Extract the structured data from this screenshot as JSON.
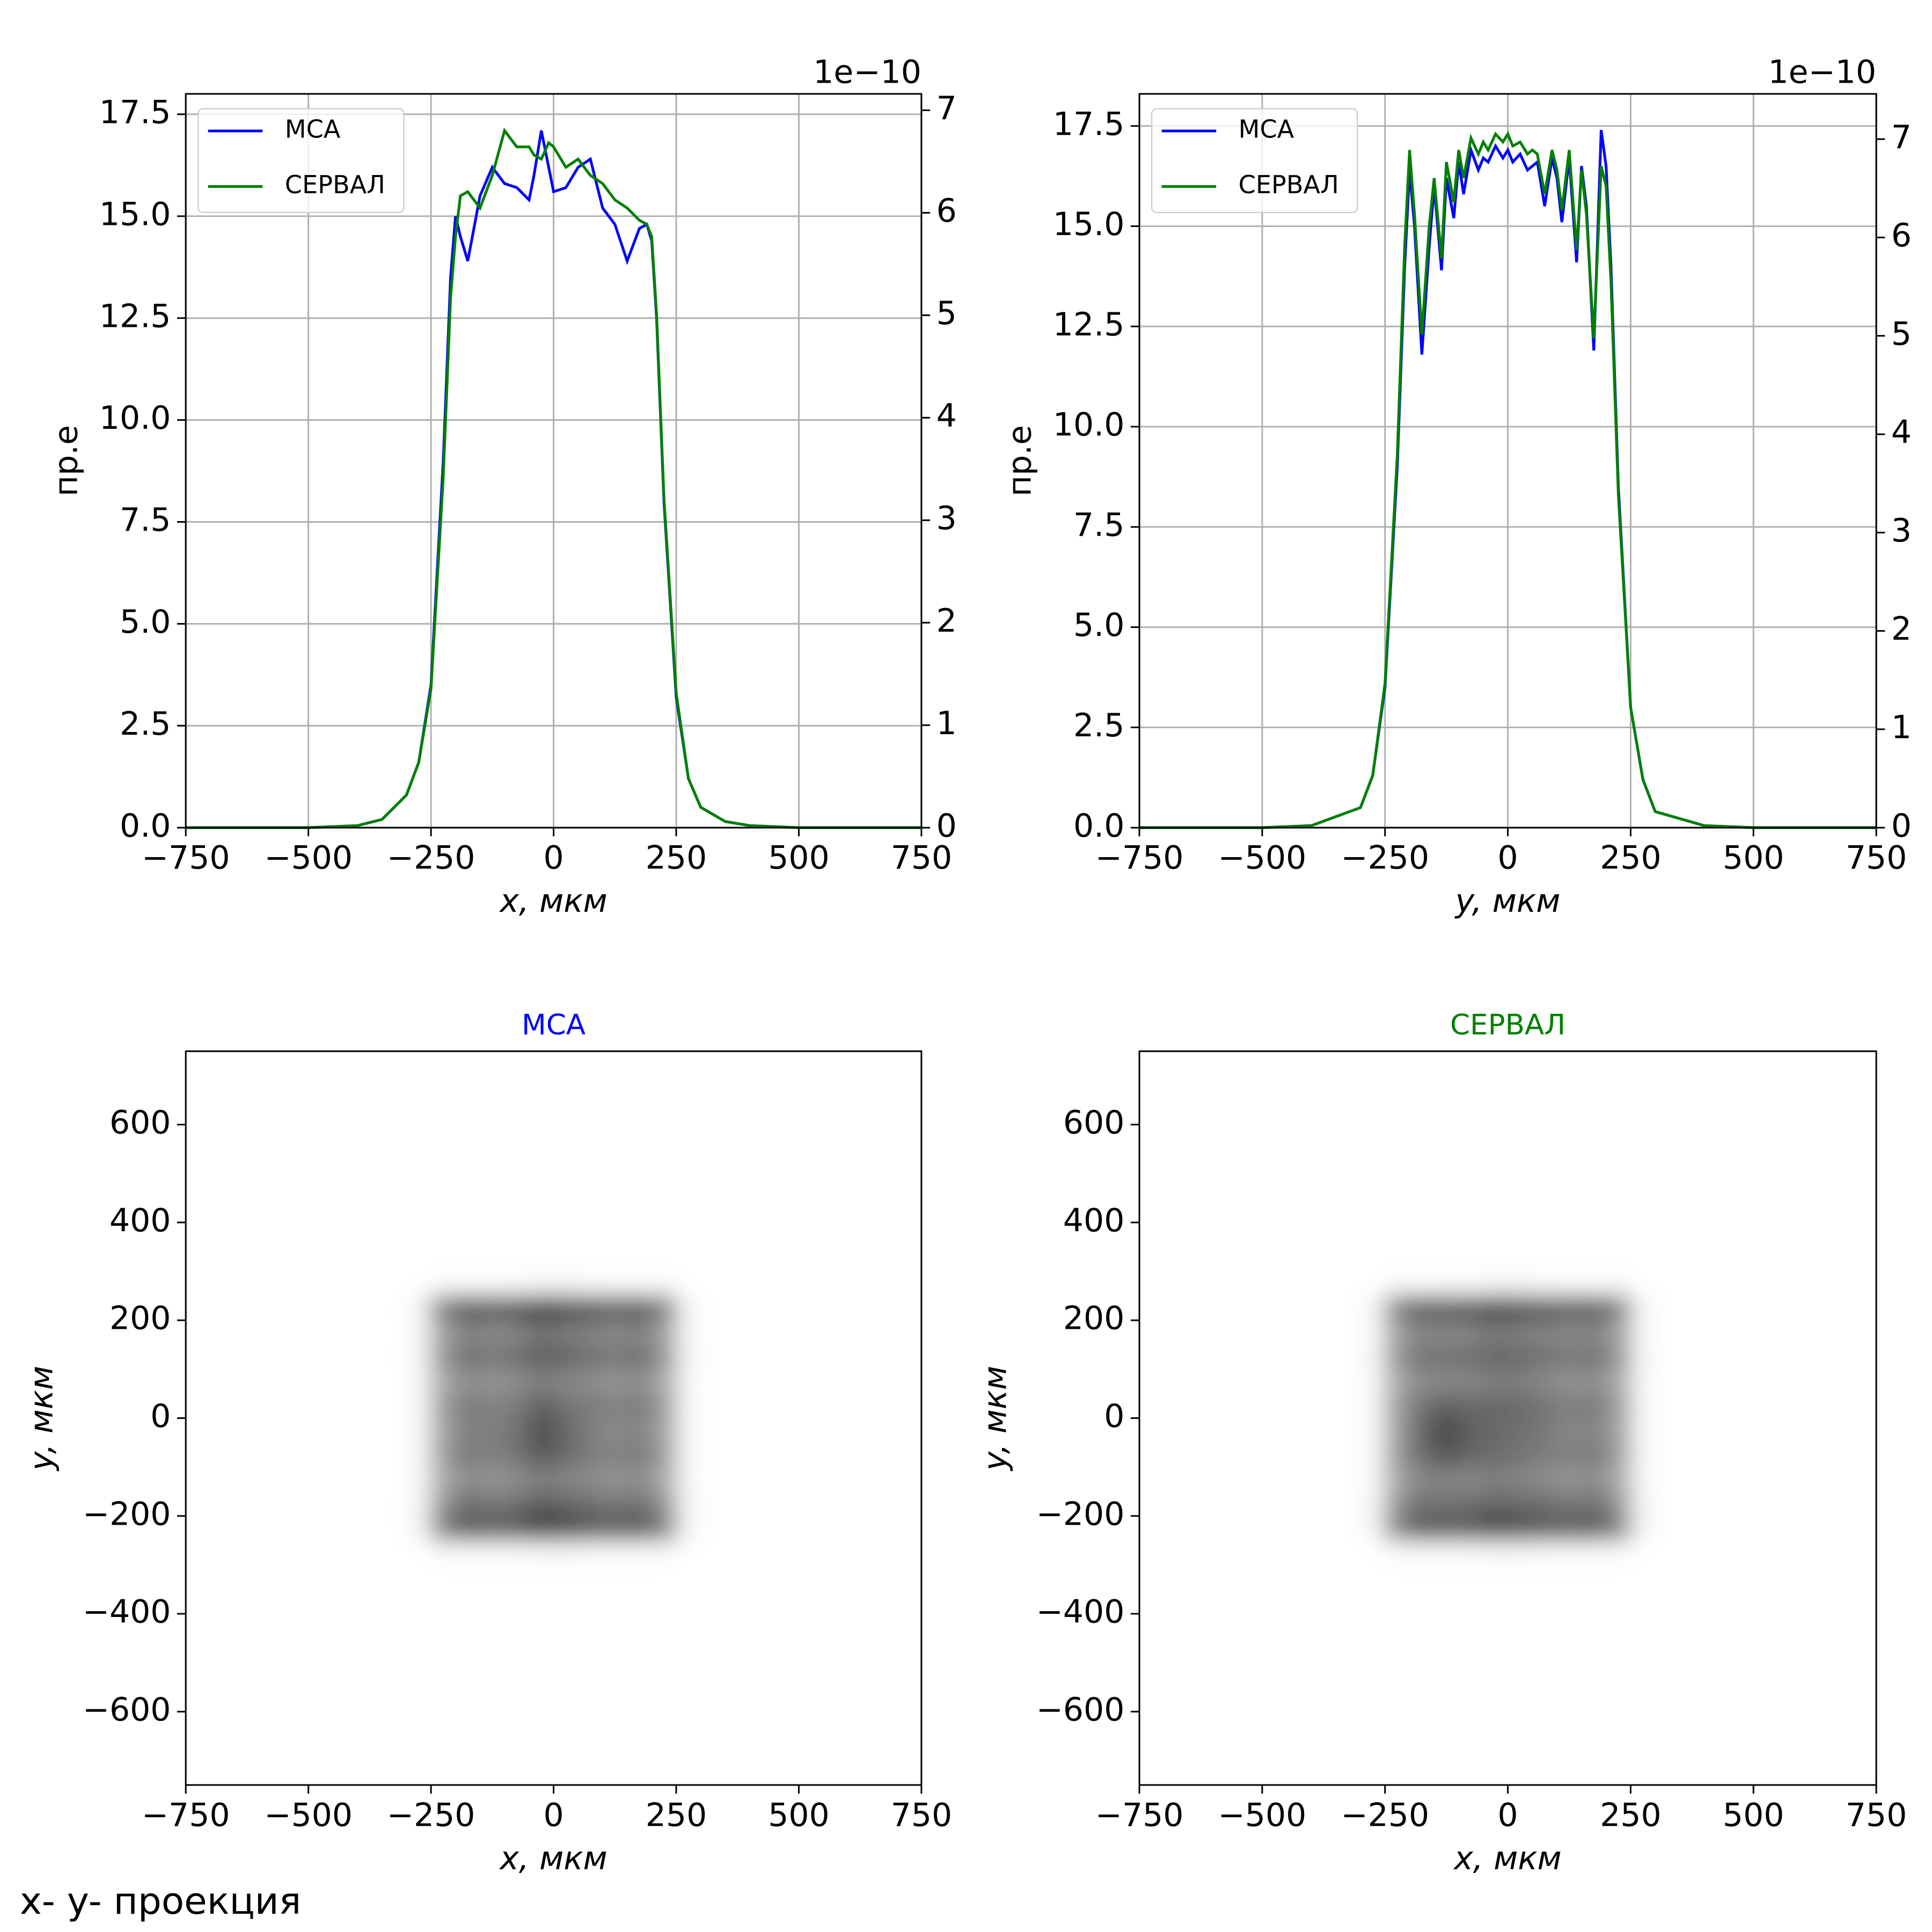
{
  "chart_data": [
    {
      "type": "line",
      "ylabel": "пр.е",
      "xlabel": "x, мкм",
      "y2_offset_label": "1e−10",
      "x": [
        -750,
        -500,
        -400,
        -350,
        -300,
        -275,
        -250,
        -225,
        -210,
        -200,
        -190,
        -175,
        -150,
        -125,
        -100,
        -75,
        -50,
        -40,
        -25,
        -10,
        0,
        25,
        50,
        75,
        100,
        125,
        150,
        175,
        190,
        200,
        210,
        225,
        250,
        275,
        300,
        350,
        400,
        500,
        750
      ],
      "series": [
        {
          "name": "МСА",
          "color": "#0000ff",
          "values": [
            0,
            0,
            0.05,
            0.2,
            0.8,
            1.6,
            3.5,
            9,
            13.5,
            15,
            14.5,
            13.9,
            15.5,
            16.2,
            15.8,
            15.7,
            15.4,
            16,
            17.1,
            16.2,
            15.6,
            15.7,
            16.2,
            16.4,
            15.2,
            14.8,
            13.9,
            14.7,
            14.8,
            14.4,
            12.5,
            8,
            3.2,
            1.2,
            0.5,
            0.15,
            0.05,
            0,
            0
          ]
        },
        {
          "name": "СЕРВАЛ",
          "color": "#008000",
          "values": [
            0,
            0,
            0.05,
            0.2,
            0.8,
            1.6,
            3.4,
            8.6,
            13,
            14.5,
            15.5,
            15.6,
            15.2,
            16,
            17.1,
            16.7,
            16.7,
            16.5,
            16.4,
            16.8,
            16.7,
            16.2,
            16.4,
            16,
            15.8,
            15.4,
            15.2,
            14.9,
            14.8,
            14.5,
            12.6,
            8.1,
            3.3,
            1.2,
            0.5,
            0.15,
            0.05,
            0,
            0
          ]
        }
      ],
      "xlim": [
        -750,
        750
      ],
      "xticks": [
        {
          "value": -750,
          "label": "−750"
        },
        {
          "value": -500,
          "label": "−500"
        },
        {
          "value": -250,
          "label": "−250"
        },
        0,
        250,
        500,
        750
      ],
      "ylim": [
        0,
        18
      ],
      "yticks": [
        {
          "value": 0,
          "label": "0.0"
        },
        2.5,
        {
          "value": 5,
          "label": "5.0"
        },
        7.5,
        {
          "value": 10,
          "label": "10.0"
        },
        12.5,
        {
          "value": 15,
          "label": "15.0"
        },
        17.5
      ],
      "y2lim": [
        0,
        7.16
      ],
      "y2ticks": [
        0,
        1,
        2,
        3,
        4,
        5,
        6,
        7
      ],
      "grid": true,
      "legend": "upper left"
    },
    {
      "type": "line",
      "ylabel": "пр.е",
      "xlabel": "y, мкм",
      "y2_offset_label": "1e−10",
      "x": [
        -750,
        -500,
        -400,
        -300,
        -275,
        -250,
        -225,
        -210,
        -200,
        -190,
        -175,
        -160,
        -150,
        -135,
        -125,
        -110,
        -100,
        -90,
        -75,
        -60,
        -50,
        -40,
        -25,
        -10,
        0,
        10,
        25,
        40,
        50,
        60,
        75,
        90,
        100,
        110,
        125,
        140,
        150,
        160,
        175,
        190,
        200,
        210,
        225,
        250,
        275,
        300,
        400,
        500,
        750
      ],
      "series": [
        {
          "name": "МСА",
          "color": "#0000ff",
          "values": [
            0,
            0,
            0.05,
            0.5,
            1.3,
            3.5,
            9,
            14,
            16.4,
            15,
            11.8,
            14.5,
            16,
            13.9,
            16.2,
            15.2,
            16.6,
            15.8,
            16.9,
            16.4,
            16.7,
            16.6,
            17,
            16.7,
            16.9,
            16.6,
            16.8,
            16.4,
            16.5,
            16.6,
            15.5,
            16.7,
            16.2,
            15.1,
            16.7,
            14.1,
            16.5,
            15.5,
            11.9,
            17.4,
            16.5,
            14,
            8.5,
            3,
            1.2,
            0.4,
            0.05,
            0,
            0
          ]
        },
        {
          "name": "СЕРВАЛ",
          "color": "#008000",
          "values": [
            0,
            0,
            0.05,
            0.5,
            1.3,
            3.6,
            9.3,
            14.5,
            16.9,
            15.3,
            12.3,
            15,
            16.2,
            14.2,
            16.6,
            15.6,
            16.9,
            16.2,
            17.2,
            16.8,
            17.1,
            16.9,
            17.3,
            17.1,
            17.3,
            17,
            17.1,
            16.8,
            16.9,
            16.8,
            15.8,
            16.9,
            16.4,
            15.4,
            16.9,
            14.4,
            16.4,
            15.3,
            12.2,
            16.5,
            16,
            13.6,
            8.3,
            3,
            1.2,
            0.4,
            0.05,
            0,
            0
          ]
        }
      ],
      "xlim": [
        -750,
        750
      ],
      "xticks": [
        {
          "value": -750,
          "label": "−750"
        },
        {
          "value": -500,
          "label": "−500"
        },
        {
          "value": -250,
          "label": "−250"
        },
        0,
        250,
        500,
        750
      ],
      "ylim": [
        0,
        18.3
      ],
      "yticks": [
        {
          "value": 0,
          "label": "0.0"
        },
        2.5,
        {
          "value": 5,
          "label": "5.0"
        },
        7.5,
        {
          "value": 10,
          "label": "10.0"
        },
        12.5,
        {
          "value": 15,
          "label": "15.0"
        },
        17.5
      ],
      "y2lim": [
        0,
        7.46
      ],
      "y2ticks": [
        0,
        1,
        2,
        3,
        4,
        5,
        6,
        7
      ],
      "grid": true,
      "legend": "upper left"
    },
    {
      "type": "heatmap",
      "title": "МСА",
      "title_color": "#0000ff",
      "xlabel": "x, мкм",
      "ylabel": "y, мкм",
      "colormap": "gray_r",
      "x": [
        -275,
        -225,
        -175,
        -125,
        -75,
        -25,
        25,
        75,
        125,
        175,
        225,
        275
      ],
      "y": [
        275,
        225,
        175,
        125,
        75,
        25,
        -25,
        -75,
        -125,
        -175,
        -225,
        -275
      ],
      "z": [
        [
          0,
          0.02,
          0.02,
          0.02,
          0.02,
          0.03,
          0.03,
          0.02,
          0.02,
          0.02,
          0.02,
          0
        ],
        [
          0.04,
          0.51,
          0.68,
          0.64,
          0.68,
          0.77,
          0.72,
          0.68,
          0.64,
          0.68,
          0.51,
          0.04
        ],
        [
          0.03,
          0.36,
          0.48,
          0.45,
          0.48,
          0.54,
          0.51,
          0.48,
          0.45,
          0.48,
          0.36,
          0.03
        ],
        [
          0.04,
          0.42,
          0.56,
          0.53,
          0.56,
          0.63,
          0.6,
          0.56,
          0.53,
          0.56,
          0.42,
          0.04
        ],
        [
          0.03,
          0.33,
          0.44,
          0.41,
          0.44,
          0.5,
          0.47,
          0.44,
          0.41,
          0.44,
          0.33,
          0.03
        ],
        [
          0.03,
          0.39,
          0.52,
          0.49,
          0.52,
          0.62,
          0.55,
          0.52,
          0.49,
          0.52,
          0.39,
          0.03
        ],
        [
          0.03,
          0.36,
          0.5,
          0.5,
          0.55,
          0.7,
          0.6,
          0.5,
          0.45,
          0.48,
          0.36,
          0.03
        ],
        [
          0.03,
          0.39,
          0.52,
          0.5,
          0.55,
          0.65,
          0.58,
          0.52,
          0.49,
          0.52,
          0.39,
          0.03
        ],
        [
          0.03,
          0.33,
          0.44,
          0.41,
          0.44,
          0.5,
          0.47,
          0.44,
          0.41,
          0.44,
          0.33,
          0.03
        ],
        [
          0.04,
          0.42,
          0.56,
          0.53,
          0.56,
          0.63,
          0.6,
          0.56,
          0.53,
          0.56,
          0.42,
          0.04
        ],
        [
          0.04,
          0.51,
          0.68,
          0.64,
          0.68,
          0.77,
          0.72,
          0.68,
          0.64,
          0.68,
          0.51,
          0.04
        ],
        [
          0,
          0.02,
          0.02,
          0.02,
          0.02,
          0.03,
          0.03,
          0.02,
          0.02,
          0.02,
          0.02,
          0
        ]
      ],
      "xlim": [
        -750,
        750
      ],
      "ylim": [
        -750,
        750
      ],
      "xticks": [
        {
          "value": -750,
          "label": "−750"
        },
        {
          "value": -500,
          "label": "−500"
        },
        {
          "value": -250,
          "label": "−250"
        },
        0,
        250,
        500,
        750
      ],
      "yticks": [
        {
          "value": -600,
          "label": "−600"
        },
        {
          "value": -400,
          "label": "−400"
        },
        {
          "value": -200,
          "label": "−200"
        },
        0,
        200,
        400,
        600
      ],
      "grid": false
    },
    {
      "type": "heatmap",
      "title": "СЕРВАЛ",
      "title_color": "#008000",
      "xlabel": "x, мкм",
      "ylabel": "y, мкм",
      "colormap": "gray_r",
      "x": [
        -275,
        -225,
        -175,
        -125,
        -75,
        -25,
        25,
        75,
        125,
        175,
        225,
        275
      ],
      "y": [
        275,
        225,
        175,
        125,
        75,
        25,
        -25,
        -75,
        -125,
        -175,
        -225,
        -275
      ],
      "z": [
        [
          0,
          0.02,
          0.02,
          0.02,
          0.02,
          0.03,
          0.03,
          0.02,
          0.02,
          0.02,
          0.02,
          0
        ],
        [
          0.04,
          0.5,
          0.66,
          0.65,
          0.68,
          0.74,
          0.7,
          0.67,
          0.64,
          0.66,
          0.5,
          0.04
        ],
        [
          0.03,
          0.36,
          0.47,
          0.46,
          0.48,
          0.52,
          0.5,
          0.48,
          0.45,
          0.47,
          0.36,
          0.03
        ],
        [
          0.04,
          0.42,
          0.55,
          0.55,
          0.57,
          0.6,
          0.58,
          0.55,
          0.53,
          0.55,
          0.42,
          0.04
        ],
        [
          0.03,
          0.33,
          0.45,
          0.46,
          0.47,
          0.5,
          0.5,
          0.46,
          0.42,
          0.44,
          0.33,
          0.03
        ],
        [
          0.03,
          0.39,
          0.55,
          0.62,
          0.58,
          0.6,
          0.58,
          0.54,
          0.5,
          0.52,
          0.39,
          0.03
        ],
        [
          0.03,
          0.37,
          0.6,
          0.72,
          0.62,
          0.58,
          0.56,
          0.52,
          0.47,
          0.48,
          0.36,
          0.03
        ],
        [
          0.03,
          0.4,
          0.58,
          0.66,
          0.6,
          0.58,
          0.55,
          0.52,
          0.49,
          0.52,
          0.39,
          0.03
        ],
        [
          0.03,
          0.34,
          0.47,
          0.48,
          0.46,
          0.5,
          0.47,
          0.44,
          0.41,
          0.44,
          0.33,
          0.03
        ],
        [
          0.04,
          0.42,
          0.56,
          0.55,
          0.56,
          0.6,
          0.58,
          0.56,
          0.53,
          0.56,
          0.42,
          0.04
        ],
        [
          0.04,
          0.5,
          0.66,
          0.65,
          0.68,
          0.74,
          0.7,
          0.67,
          0.64,
          0.66,
          0.5,
          0.04
        ],
        [
          0,
          0.02,
          0.02,
          0.02,
          0.02,
          0.03,
          0.03,
          0.02,
          0.02,
          0.02,
          0.02,
          0
        ]
      ],
      "xlim": [
        -750,
        750
      ],
      "ylim": [
        -750,
        750
      ],
      "xticks": [
        {
          "value": -750,
          "label": "−750"
        },
        {
          "value": -500,
          "label": "−500"
        },
        {
          "value": -250,
          "label": "−250"
        },
        0,
        250,
        500,
        750
      ],
      "yticks": [
        {
          "value": -600,
          "label": "−600"
        },
        {
          "value": -400,
          "label": "−400"
        },
        {
          "value": -200,
          "label": "−200"
        },
        0,
        200,
        400,
        600
      ],
      "grid": false
    }
  ],
  "figure_text": "x- y- проекция"
}
